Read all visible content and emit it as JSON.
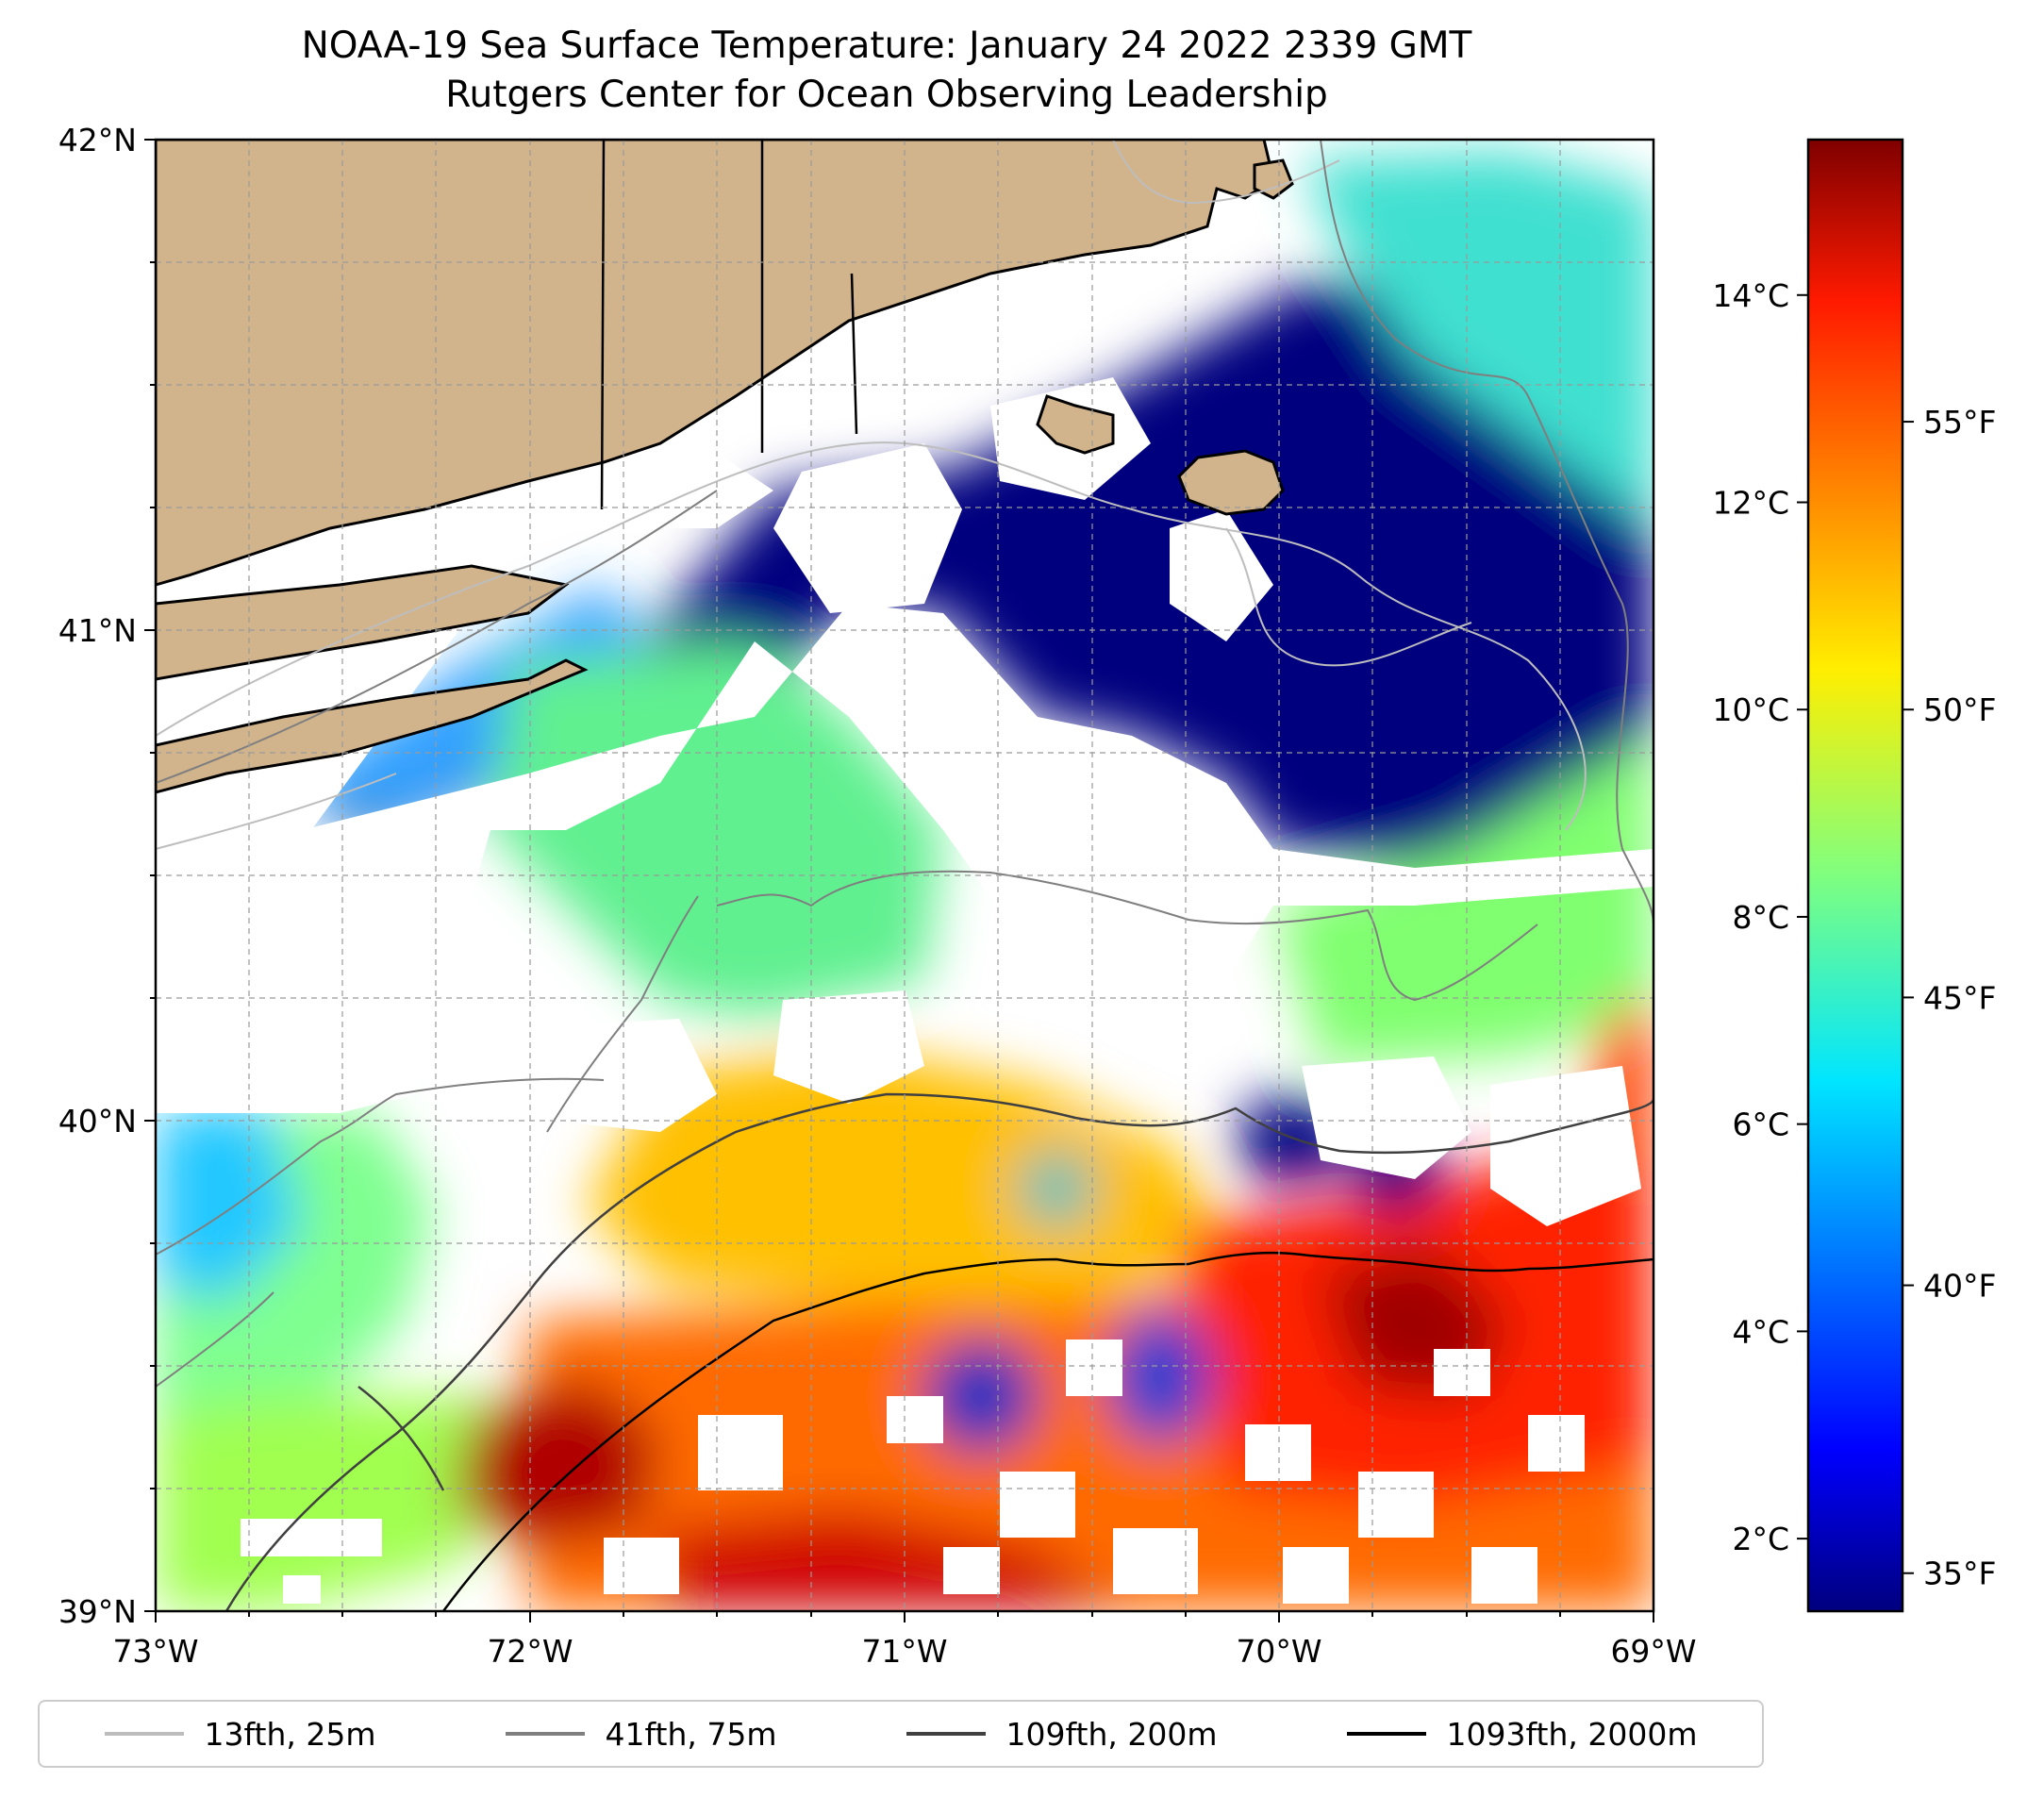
{
  "chart_data": {
    "type": "heatmap",
    "title": "NOAA-19 Sea Surface Temperature: January 24 2022 2339 GMT",
    "subtitle": "Rutgers Center for Ocean Observing Leadership",
    "x_ticks": [
      "73°W",
      "72°W",
      "71°W",
      "70°W",
      "69°W"
    ],
    "y_ticks": [
      "42°N",
      "41°N",
      "40°N",
      "39°N"
    ],
    "xlim": [
      -73,
      -69
    ],
    "ylim": [
      39,
      42
    ],
    "grid": true,
    "colorbar": {
      "colormap": "jet",
      "range_c": [
        1.3,
        15.5
      ],
      "left_ticks": [
        "14°C",
        "12°C",
        "10°C",
        "8°C",
        "6°C",
        "4°C",
        "2°C"
      ],
      "left_values": [
        14,
        12,
        10,
        8,
        6,
        4,
        2
      ],
      "right_ticks": [
        "55°F",
        "50°F",
        "45°F",
        "40°F",
        "35°F"
      ],
      "right_values": [
        55,
        50,
        45,
        40,
        35
      ]
    },
    "legend_placement": "bottom",
    "series": [
      {
        "name": "13fth, 25m",
        "color": "#bdbdbd"
      },
      {
        "name": "41fth, 75m",
        "color": "#7f7f7f"
      },
      {
        "name": "109fth, 200m",
        "color": "#404040"
      },
      {
        "name": "1093fth, 2000m",
        "color": "#000000"
      }
    ],
    "land_color": "#d2b48c"
  }
}
